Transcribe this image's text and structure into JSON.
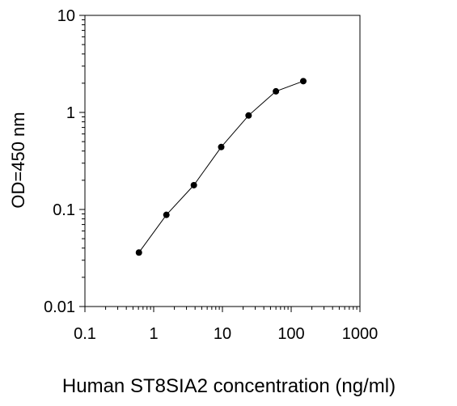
{
  "chart_data": {
    "type": "line",
    "title": "",
    "xlabel": "Human ST8SIA2 concentration (ng/ml)",
    "ylabel": "OD=450 nm",
    "x_scale": "log",
    "y_scale": "log",
    "xlim": [
      0.1,
      1000
    ],
    "ylim": [
      0.01,
      10
    ],
    "x_ticks": [
      "0.1",
      "1",
      "10",
      "100",
      "1000"
    ],
    "y_ticks": [
      "0.01",
      "0.1",
      "1",
      "10"
    ],
    "grid": false,
    "legend": "none",
    "series": [
      {
        "x": [
          0.61,
          1.53,
          3.84,
          9.6,
          24,
          60,
          150
        ],
        "y": [
          0.036,
          0.088,
          0.178,
          0.44,
          0.93,
          1.65,
          2.1
        ]
      }
    ],
    "colors": {
      "line": "#000000",
      "marker": "#000000"
    }
  }
}
